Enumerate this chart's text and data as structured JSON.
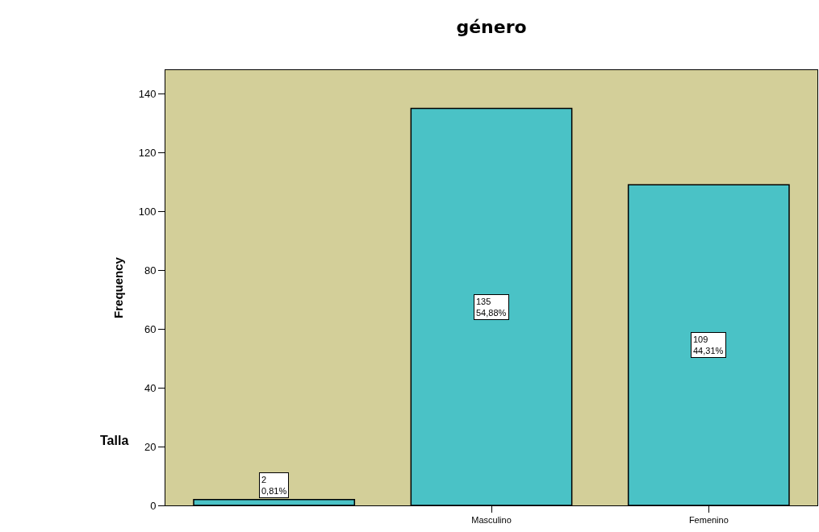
{
  "chart_data": {
    "type": "bar",
    "title": "género",
    "ylabel": "Frequency",
    "categories": [
      null,
      "Masculino",
      "Femenino"
    ],
    "values": [
      2,
      135,
      109
    ],
    "value_labels": [
      "2\n0,81%",
      "135\n54,88%",
      "109\n44,31%"
    ],
    "color": "#4ac2c6",
    "ylim": [
      0,
      148
    ],
    "yticks": [
      0,
      20,
      40,
      60,
      80,
      100,
      120,
      140
    ],
    "grid": false,
    "legend": false,
    "annotations": [
      "Talla"
    ]
  }
}
